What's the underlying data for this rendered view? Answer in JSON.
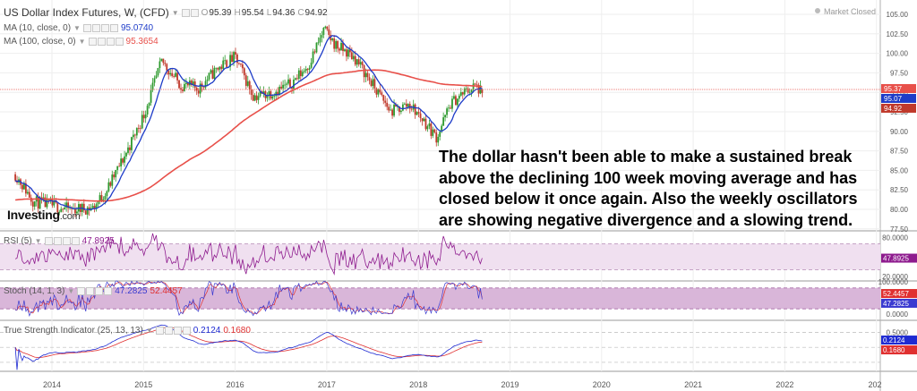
{
  "header": {
    "symbol": "US Dollar Index Futures, W, (CFD)",
    "open_label": "O",
    "open": "95.39",
    "high_label": "H",
    "high": "95.54",
    "low_label": "L",
    "low": "94.36",
    "close_label": "C",
    "close": "94.92",
    "market_status": "Market Closed"
  },
  "indicators": {
    "ma10": {
      "label": "MA (10, close, 0)",
      "value": "95.0740",
      "color": "#1e3cc8"
    },
    "ma100": {
      "label": "MA (100, close, 0)",
      "value": "95.3654",
      "color": "#e8504a"
    },
    "rsi": {
      "label": "RSI (5)",
      "value": "47.8925",
      "color": "#8e1b8e"
    },
    "stoch": {
      "label": "Stoch (14, 1, 3)",
      "k_value": "47.2825",
      "d_value": "52.4457",
      "k_color": "#3a3ad0",
      "d_color": "#e03030"
    },
    "tsi": {
      "label": "True Strength Indicator (25, 13, 13)",
      "value": "0.2124",
      "signal": "0.1680",
      "color": "#1e2ad2",
      "signal_color": "#e03030"
    }
  },
  "logo": {
    "name": "Investing",
    "suffix": ".com"
  },
  "annotation": "The dollar hasn't been able to make a sustained break above the declining 100 week moving average and has closed below it once again. Also the weekly oscillators are showing negative divergence and a slowing trend.",
  "price_tags": {
    "last": "95.37",
    "ma10": "95.07",
    "close": "94.92"
  },
  "rsi_tags": {
    "value": "47.8925"
  },
  "stoch_tags": {
    "d": "52.4457",
    "k": "47.2825"
  },
  "tsi_tags": {
    "value": "0.2124",
    "signal": "0.1680"
  },
  "colors": {
    "up": "#2e9a2e",
    "down": "#c0392b",
    "rsi_band": "#f0e0f0",
    "stoch_band": "#d9b6d9",
    "grid": "#eeeeee"
  },
  "chart_data": [
    {
      "type": "candlestick",
      "title": "US Dollar Index Futures, W, (CFD)",
      "x_tick_labels": [
        "2014",
        "2015",
        "2016",
        "2017",
        "2018",
        "2019",
        "2020",
        "2021",
        "2022",
        "202"
      ],
      "y_tick_labels": [
        "105.00",
        "102.50",
        "100.00",
        "97.50",
        "95.00",
        "92.50",
        "90.00",
        "87.50",
        "85.00",
        "82.50",
        "80.00",
        "77.50"
      ],
      "ylim": [
        77.5,
        106.0
      ],
      "grid": true,
      "key_points": {
        "x": [
          2013.6,
          2013.8,
          2014.0,
          2014.2,
          2014.45,
          2014.6,
          2014.8,
          2015.0,
          2015.2,
          2015.4,
          2015.6,
          2015.8,
          2016.0,
          2016.2,
          2016.4,
          2016.6,
          2016.8,
          2016.97,
          2017.1,
          2017.3,
          2017.5,
          2017.7,
          2017.9,
          2018.05,
          2018.2,
          2018.35,
          2018.5,
          2018.62,
          2018.7
        ],
        "y": [
          84.5,
          81.0,
          80.5,
          80.0,
          80.2,
          82.5,
          87.0,
          92.0,
          99.0,
          96.0,
          95.5,
          98.0,
          99.5,
          94.5,
          95.0,
          96.0,
          98.5,
          103.0,
          101.0,
          99.5,
          96.0,
          92.5,
          93.5,
          91.5,
          89.2,
          93.5,
          95.0,
          95.8,
          94.92
        ]
      },
      "series": [
        {
          "name": "MA (10, close, 0)",
          "last": 95.074
        },
        {
          "name": "MA (100, close, 0)",
          "last": 95.3654
        }
      ]
    },
    {
      "type": "line",
      "title": "RSI (5)",
      "y_tick_labels": [
        "80.0000",
        "47.8925",
        "20.0000"
      ],
      "ylim": [
        10,
        90
      ],
      "bands": [
        30,
        70
      ],
      "last": 47.8925
    },
    {
      "type": "line",
      "title": "Stoch (14, 1, 3)",
      "y_tick_labels": [
        "100.0000",
        "52.4457",
        "47.2825",
        "0.0000"
      ],
      "ylim": [
        0,
        100
      ],
      "bands": [
        20,
        80
      ],
      "series": [
        {
          "name": "%K",
          "last": 47.2825
        },
        {
          "name": "%D",
          "last": 52.4457
        }
      ]
    },
    {
      "type": "line",
      "title": "True Strength Indicator (25, 13, 13)",
      "y_tick_labels": [
        "0.5000",
        "0.2124",
        "0.1680"
      ],
      "ylim": [
        -0.8,
        0.9
      ],
      "series": [
        {
          "name": "TSI",
          "last": 0.2124
        },
        {
          "name": "Signal",
          "last": 0.168
        }
      ]
    }
  ]
}
